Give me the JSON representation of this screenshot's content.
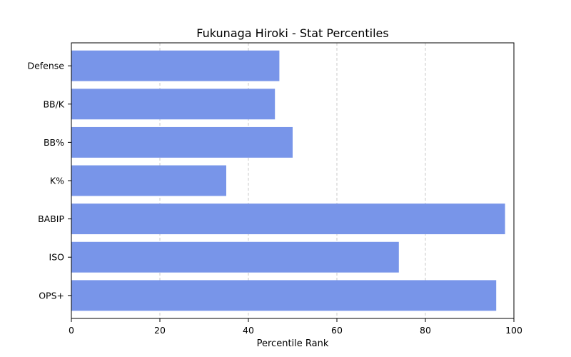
{
  "chart_data": {
    "type": "bar",
    "orientation": "horizontal",
    "title": "Fukunaga Hiroki - Stat Percentiles",
    "xlabel": "Percentile Rank",
    "ylabel": "",
    "categories": [
      "Defense",
      "BB/K",
      "BB%",
      "K%",
      "BABIP",
      "ISO",
      "OPS+"
    ],
    "values": [
      47,
      46,
      50,
      35,
      98,
      74,
      96
    ],
    "xlim": [
      0,
      100
    ],
    "xticks": [
      0,
      20,
      40,
      60,
      80,
      100
    ],
    "grid": "x-dashed",
    "bar_color": "#7895e9"
  }
}
